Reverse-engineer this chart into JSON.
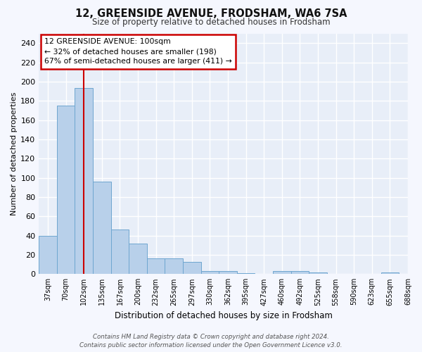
{
  "title": "12, GREENSIDE AVENUE, FRODSHAM, WA6 7SA",
  "subtitle": "Size of property relative to detached houses in Frodsham",
  "xlabel": "Distribution of detached houses by size in Frodsham",
  "ylabel": "Number of detached properties",
  "bar_values": [
    40,
    175,
    193,
    96,
    46,
    32,
    16,
    16,
    13,
    3,
    3,
    1,
    0,
    3,
    3,
    2,
    0,
    0,
    0,
    2
  ],
  "bin_labels": [
    "37sqm",
    "70sqm",
    "102sqm",
    "135sqm",
    "167sqm",
    "200sqm",
    "232sqm",
    "265sqm",
    "297sqm",
    "330sqm",
    "362sqm",
    "395sqm",
    "427sqm",
    "460sqm",
    "492sqm",
    "525sqm",
    "558sqm",
    "590sqm",
    "623sqm",
    "655sqm",
    "688sqm"
  ],
  "bar_color": "#b8d0ea",
  "bar_edge_color": "#6ea6d0",
  "red_line_x": 2,
  "red_line_color": "#cc0000",
  "annotation_lines": [
    "12 GREENSIDE AVENUE: 100sqm",
    "← 32% of detached houses are smaller (198)",
    "67% of semi-detached houses are larger (411) →"
  ],
  "annotation_box_facecolor": "#ffffff",
  "annotation_box_edgecolor": "#cc0000",
  "fig_facecolor": "#f5f7fe",
  "ax_facecolor": "#e8eef8",
  "grid_color": "#ffffff",
  "title_color": "#111111",
  "subtitle_color": "#333333",
  "footer_line1": "Contains HM Land Registry data © Crown copyright and database right 2024.",
  "footer_line2": "Contains public sector information licensed under the Open Government Licence v3.0.",
  "ylim": [
    0,
    250
  ],
  "yticks": [
    0,
    20,
    40,
    60,
    80,
    100,
    120,
    140,
    160,
    180,
    200,
    220,
    240
  ]
}
